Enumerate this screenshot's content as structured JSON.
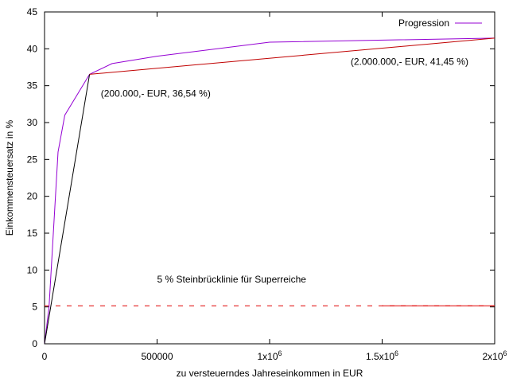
{
  "chart_data": {
    "type": "line",
    "xlabel": "zu versteuerndes Jahreseinkommen in EUR",
    "ylabel": "Einkommensteuersatz in %",
    "xlim": [
      0,
      2000000
    ],
    "ylim": [
      0,
      45
    ],
    "x_ticks": [
      {
        "value": 0,
        "label": "0"
      },
      {
        "value": 500000,
        "label": "500000"
      },
      {
        "value": 1000000,
        "label": "1x10",
        "sup": "6"
      },
      {
        "value": 1500000,
        "label": "1.5x10",
        "sup": "6"
      },
      {
        "value": 2000000,
        "label": "2x10",
        "sup": "6"
      }
    ],
    "y_ticks": [
      0,
      5,
      10,
      15,
      20,
      25,
      30,
      35,
      40,
      45
    ],
    "grid": false,
    "legend_position": "top-right",
    "series": [
      {
        "name": "Progression",
        "color": "#9400d3",
        "x": [
          0,
          20000,
          60000,
          90000,
          200000,
          300000,
          500000,
          1000000,
          2000000
        ],
        "y": [
          0,
          5,
          26,
          31,
          36.54,
          38,
          39,
          40.9,
          41.45
        ]
      },
      {
        "color": "#000000",
        "x": [
          0,
          200000
        ],
        "y": [
          0,
          36.54
        ]
      },
      {
        "color": "#c00000",
        "x": [
          200000,
          2000000
        ],
        "y": [
          36.54,
          41.45
        ]
      },
      {
        "color": "#e00000",
        "x": [
          1500000,
          2000000
        ],
        "y": [
          5.15,
          5.15
        ]
      }
    ],
    "dashed_line": {
      "color": "#e00000",
      "x": [
        0,
        2000000
      ],
      "y": [
        5.15,
        5.15
      ]
    },
    "annotations": [
      {
        "text": "(200.000,- EUR, 36,54 %)",
        "x": 250000,
        "y": 33.5
      },
      {
        "text": "(2.000.000,- EUR, 41,45 %)",
        "x": 1360000,
        "y": 37.8
      },
      {
        "text": "5 % Steinbrücklinie für Superreiche",
        "x": 500000,
        "y": 8.3
      }
    ]
  }
}
